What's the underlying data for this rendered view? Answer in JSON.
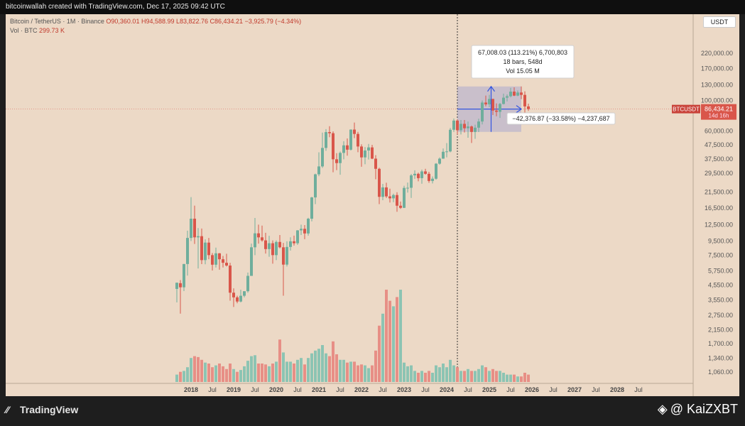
{
  "topbar": {
    "text": "bitcoinwallah created with TradingView.com, Dec 17, 2025 09:42 UTC"
  },
  "header": {
    "symbol": "Bitcoin / TetherUS · 1M · Binance",
    "ohlc": "O90,360.01  H94,588.99  L83,822.76  C86,434.21  −3,925.79 (−4.34%)",
    "vol_label": "Vol · BTC",
    "vol_value": "299.73 K"
  },
  "currency": "USDT",
  "price_tag": {
    "symbol": "BTCUSDT",
    "price": "86,434.21",
    "countdown": "14d 16h"
  },
  "measure": {
    "line1": "67,008.03 (113.21%) 6,700,803",
    "line2": "18 bars, 548d",
    "line3": "Vol 15.05 M",
    "lower": "−42,376.87 (−33.58%) −4,237,687"
  },
  "brand": {
    "name": "TradingView"
  },
  "watermark": {
    "text": "@ KaiZXBT"
  },
  "colors": {
    "up": "#6fae9c",
    "down": "#d9564a",
    "vol_up": "#8cc4b3",
    "vol_down": "#e78f86",
    "bg": "#ecd9c6",
    "measure": "#3355e0"
  },
  "chart_data": {
    "type": "candlestick",
    "scale": "log",
    "y_ticks": [
      220000,
      170000,
      130000,
      100000,
      60000,
      47500,
      37500,
      29500,
      21500,
      16500,
      12500,
      9500,
      7500,
      5750,
      4550,
      3550,
      2750,
      2150,
      1700,
      1340,
      1060
    ],
    "y_tick_labels": [
      "220,000.00",
      "170,000.00",
      "130,000.00",
      "100,000.00",
      "60,000.00",
      "47,500.00",
      "37,500.00",
      "29,500.00",
      "21,500.00",
      "16,500.00",
      "12,500.00",
      "9,500.00",
      "7,500.00",
      "5,750.00",
      "4,550.00",
      "3,550.00",
      "2,750.00",
      "2,150.00",
      "1,700.00",
      "1,340.00",
      "1,060.00"
    ],
    "x_ticks": [
      {
        "label": "2018",
        "i": 4,
        "bold": true
      },
      {
        "label": "Jul",
        "i": 10
      },
      {
        "label": "2019",
        "i": 16,
        "bold": true
      },
      {
        "label": "Jul",
        "i": 22
      },
      {
        "label": "2020",
        "i": 28,
        "bold": true
      },
      {
        "label": "Jul",
        "i": 34
      },
      {
        "label": "2021",
        "i": 40,
        "bold": true
      },
      {
        "label": "Jul",
        "i": 46
      },
      {
        "label": "2022",
        "i": 52,
        "bold": true
      },
      {
        "label": "Jul",
        "i": 58
      },
      {
        "label": "2023",
        "i": 64,
        "bold": true
      },
      {
        "label": "Jul",
        "i": 70
      },
      {
        "label": "2024",
        "i": 76,
        "bold": true
      },
      {
        "label": "Jul",
        "i": 82
      },
      {
        "label": "2025",
        "i": 88,
        "bold": true
      },
      {
        "label": "Jul",
        "i": 94
      },
      {
        "label": "2026",
        "i": 100,
        "bold": true
      },
      {
        "label": "Jul",
        "i": 106
      },
      {
        "label": "2027",
        "i": 112,
        "bold": true
      },
      {
        "label": "Jul",
        "i": 118
      },
      {
        "label": "2028",
        "i": 124,
        "bold": true
      },
      {
        "label": "Jul",
        "i": 130
      }
    ],
    "start": "2017-08",
    "candles": [
      [
        4261,
        4745,
        3400,
        4724
      ],
      [
        4690,
        4939,
        2817,
        4378
      ],
      [
        4378,
        6470,
        4110,
        6463
      ],
      [
        6463,
        11300,
        5325,
        10000
      ],
      [
        10000,
        19798,
        9500,
        13800
      ],
      [
        13800,
        17176,
        9035,
        10100
      ],
      [
        10100,
        11786,
        6000,
        10300
      ],
      [
        10300,
        11700,
        6450,
        6900
      ],
      [
        6900,
        9765,
        6430,
        9250
      ],
      [
        9250,
        10000,
        7000,
        7500
      ],
      [
        7500,
        7770,
        5800,
        6390
      ],
      [
        6390,
        8500,
        6100,
        7730
      ],
      [
        7730,
        7770,
        5880,
        7000
      ],
      [
        7000,
        7400,
        6100,
        6600
      ],
      [
        6600,
        7680,
        6200,
        6300
      ],
      [
        6300,
        6600,
        3500,
        4000
      ],
      [
        4000,
        4300,
        3150,
        3700
      ],
      [
        3700,
        3800,
        3350,
        3450
      ],
      [
        3450,
        4200,
        3400,
        3800
      ],
      [
        3800,
        4100,
        3700,
        4100
      ],
      [
        4100,
        5600,
        4000,
        5300
      ],
      [
        5300,
        9100,
        5300,
        8550
      ],
      [
        8550,
        13970,
        7500,
        10800
      ],
      [
        10800,
        12500,
        9100,
        10100
      ],
      [
        10100,
        12300,
        9400,
        9600
      ],
      [
        9600,
        10900,
        7700,
        8300
      ],
      [
        8300,
        10370,
        7300,
        9150
      ],
      [
        9150,
        9600,
        6500,
        7500
      ],
      [
        7500,
        9600,
        6900,
        9350
      ],
      [
        9350,
        10500,
        8400,
        8550
      ],
      [
        8550,
        9200,
        3800,
        6400
      ],
      [
        6400,
        9450,
        6200,
        8600
      ],
      [
        8600,
        10100,
        8100,
        9450
      ],
      [
        9450,
        10400,
        8800,
        9150
      ],
      [
        9150,
        11400,
        8900,
        11350
      ],
      [
        11350,
        12500,
        10500,
        11650
      ],
      [
        11650,
        12400,
        9800,
        10780
      ],
      [
        10780,
        14000,
        10400,
        13800
      ],
      [
        13800,
        19900,
        13200,
        19700
      ],
      [
        19700,
        29300,
        17600,
        29000
      ],
      [
        29000,
        41950,
        28130,
        33100
      ],
      [
        33100,
        58350,
        32300,
        45100
      ],
      [
        45100,
        61800,
        43000,
        58800
      ],
      [
        58800,
        64850,
        54000,
        57700
      ],
      [
        57700,
        59500,
        30000,
        37300
      ],
      [
        37300,
        41300,
        31100,
        35000
      ],
      [
        35000,
        42500,
        28800,
        41500
      ],
      [
        41500,
        50500,
        37300,
        47100
      ],
      [
        47100,
        52900,
        39600,
        43800
      ],
      [
        43800,
        61500,
        43200,
        61300
      ],
      [
        61300,
        69000,
        53200,
        57000
      ],
      [
        57000,
        59000,
        42000,
        46200
      ],
      [
        46200,
        47900,
        32900,
        38500
      ],
      [
        38500,
        45800,
        34300,
        43200
      ],
      [
        43200,
        48200,
        37200,
        45500
      ],
      [
        45500,
        47500,
        37400,
        37700
      ],
      [
        37700,
        40000,
        26700,
        31800
      ],
      [
        31800,
        32400,
        17600,
        19900
      ],
      [
        19900,
        24700,
        18800,
        23300
      ],
      [
        23300,
        25200,
        19500,
        20050
      ],
      [
        20050,
        22800,
        18100,
        19400
      ],
      [
        19400,
        21000,
        18200,
        20500
      ],
      [
        20500,
        21500,
        15500,
        17150
      ],
      [
        17150,
        18400,
        16250,
        16550
      ],
      [
        16550,
        23950,
        16500,
        23100
      ],
      [
        23100,
        25250,
        21350,
        23150
      ],
      [
        23150,
        29200,
        19550,
        28500
      ],
      [
        28500,
        31000,
        26900,
        29250
      ],
      [
        29250,
        29850,
        25800,
        27200
      ],
      [
        27200,
        31400,
        24800,
        30450
      ],
      [
        30450,
        31800,
        28850,
        29250
      ],
      [
        29250,
        30250,
        25150,
        25950
      ],
      [
        25950,
        28000,
        24900,
        26950
      ],
      [
        26950,
        35000,
        26550,
        34650
      ],
      [
        34650,
        38450,
        34100,
        37700
      ],
      [
        37700,
        44700,
        37600,
        42300
      ],
      [
        42300,
        48950,
        38550,
        42550
      ],
      [
        42550,
        63000,
        41900,
        61150
      ],
      [
        61150,
        73800,
        59000,
        71300
      ],
      [
        71300,
        72800,
        56550,
        60650
      ],
      [
        60650,
        71950,
        56500,
        67500
      ],
      [
        67500,
        71950,
        58400,
        62700
      ],
      [
        62700,
        70050,
        53500,
        64600
      ],
      [
        64600,
        65600,
        49000,
        58950
      ],
      [
        58950,
        66500,
        52550,
        63300
      ],
      [
        63300,
        73600,
        58850,
        70200
      ],
      [
        70200,
        99800,
        66800,
        96400
      ],
      [
        96400,
        108350,
        90500,
        93550
      ],
      [
        93550,
        109600,
        89200,
        102400
      ],
      [
        102400,
        102750,
        78250,
        84350
      ],
      [
        84350,
        95000,
        76600,
        82550
      ],
      [
        82550,
        95750,
        74500,
        94200
      ],
      [
        94200,
        111950,
        93350,
        104600
      ],
      [
        104600,
        110400,
        98200,
        107150
      ],
      [
        107150,
        123200,
        105100,
        115750
      ],
      [
        115750,
        124450,
        107350,
        108250
      ],
      [
        108250,
        117900,
        107250,
        114050
      ],
      [
        114050,
        126200,
        102000,
        109600
      ],
      [
        109600,
        116400,
        80600,
        90360
      ],
      [
        90360,
        94590,
        83820,
        86434
      ]
    ],
    "volume": [
      [
        0.08,
        1
      ],
      [
        0.11,
        0
      ],
      [
        0.12,
        1
      ],
      [
        0.16,
        1
      ],
      [
        0.26,
        1
      ],
      [
        0.28,
        0
      ],
      [
        0.27,
        0
      ],
      [
        0.24,
        0
      ],
      [
        0.21,
        1
      ],
      [
        0.2,
        0
      ],
      [
        0.16,
        0
      ],
      [
        0.18,
        1
      ],
      [
        0.2,
        0
      ],
      [
        0.17,
        0
      ],
      [
        0.14,
        0
      ],
      [
        0.2,
        0
      ],
      [
        0.14,
        1
      ],
      [
        0.11,
        0
      ],
      [
        0.13,
        1
      ],
      [
        0.17,
        1
      ],
      [
        0.23,
        1
      ],
      [
        0.28,
        1
      ],
      [
        0.29,
        1
      ],
      [
        0.2,
        0
      ],
      [
        0.2,
        0
      ],
      [
        0.19,
        0
      ],
      [
        0.17,
        1
      ],
      [
        0.2,
        0
      ],
      [
        0.22,
        1
      ],
      [
        0.46,
        0
      ],
      [
        0.32,
        1
      ],
      [
        0.22,
        1
      ],
      [
        0.22,
        1
      ],
      [
        0.2,
        0
      ],
      [
        0.24,
        1
      ],
      [
        0.26,
        1
      ],
      [
        0.19,
        0
      ],
      [
        0.26,
        1
      ],
      [
        0.31,
        1
      ],
      [
        0.34,
        1
      ],
      [
        0.36,
        1
      ],
      [
        0.4,
        1
      ],
      [
        0.31,
        1
      ],
      [
        0.28,
        0
      ],
      [
        0.44,
        0
      ],
      [
        0.3,
        0
      ],
      [
        0.24,
        1
      ],
      [
        0.24,
        1
      ],
      [
        0.21,
        0
      ],
      [
        0.22,
        1
      ],
      [
        0.22,
        0
      ],
      [
        0.18,
        0
      ],
      [
        0.19,
        0
      ],
      [
        0.18,
        1
      ],
      [
        0.15,
        1
      ],
      [
        0.18,
        0
      ],
      [
        0.34,
        0
      ],
      [
        0.61,
        0
      ],
      [
        0.74,
        1
      ],
      [
        1.0,
        0
      ],
      [
        0.88,
        0
      ],
      [
        0.82,
        1
      ],
      [
        0.92,
        0
      ],
      [
        1.0,
        1
      ],
      [
        0.21,
        1
      ],
      [
        0.17,
        1
      ],
      [
        0.18,
        1
      ],
      [
        0.12,
        1
      ],
      [
        0.1,
        0
      ],
      [
        0.12,
        1
      ],
      [
        0.1,
        0
      ],
      [
        0.12,
        0
      ],
      [
        0.1,
        1
      ],
      [
        0.18,
        1
      ],
      [
        0.16,
        1
      ],
      [
        0.2,
        1
      ],
      [
        0.16,
        1
      ],
      [
        0.24,
        1
      ],
      [
        0.18,
        1
      ],
      [
        0.16,
        0
      ],
      [
        0.12,
        1
      ],
      [
        0.12,
        0
      ],
      [
        0.14,
        1
      ],
      [
        0.12,
        0
      ],
      [
        0.12,
        1
      ],
      [
        0.14,
        1
      ],
      [
        0.18,
        1
      ],
      [
        0.16,
        0
      ],
      [
        0.12,
        1
      ],
      [
        0.14,
        0
      ],
      [
        0.12,
        0
      ],
      [
        0.12,
        1
      ],
      [
        0.1,
        1
      ],
      [
        0.08,
        1
      ],
      [
        0.08,
        1
      ],
      [
        0.08,
        0
      ],
      [
        0.06,
        1
      ],
      [
        0.06,
        0
      ],
      [
        0.1,
        0
      ],
      [
        0.08,
        0
      ]
    ]
  }
}
